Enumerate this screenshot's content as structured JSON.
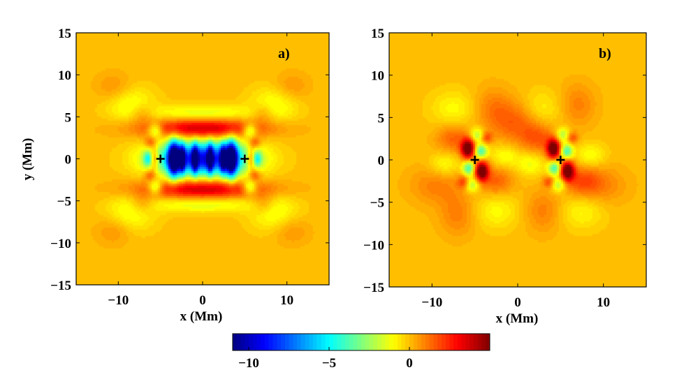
{
  "chart_data": [
    {
      "type": "heatmap",
      "panel_label": "a)",
      "xlabel": "x  (Mm)",
      "ylabel": "y  (Mm)",
      "xlim": [
        -15,
        15
      ],
      "ylim": [
        -15,
        15
      ],
      "xticks": [
        -10,
        0,
        10
      ],
      "yticks": [
        15,
        10,
        5,
        0,
        -5,
        -10,
        -15
      ],
      "grid": false,
      "markers": [
        {
          "x": -5,
          "y": 0,
          "symbol": "+"
        },
        {
          "x": 5,
          "y": 0,
          "symbol": "+"
        }
      ],
      "background_value": 0,
      "features": [
        {
          "x": -1.2,
          "y": 0,
          "sx": 3.6,
          "sy": 1.4,
          "value": -5
        },
        {
          "x": 1.2,
          "y": 0,
          "sx": 3.6,
          "sy": 1.4,
          "value": -5
        },
        {
          "x": -3.4,
          "y": 0,
          "sx": 0.5,
          "sy": 1.5,
          "value": -10
        },
        {
          "x": 3.4,
          "y": 0,
          "sx": 0.5,
          "sy": 1.5,
          "value": -10
        },
        {
          "x": -2.4,
          "y": 0,
          "sx": 0.25,
          "sy": 1.2,
          "value": -6
        },
        {
          "x": 2.4,
          "y": 0,
          "sx": 0.25,
          "sy": 1.2,
          "value": -6
        },
        {
          "x": -0.9,
          "y": 0,
          "sx": 0.25,
          "sy": 1.2,
          "value": -6
        },
        {
          "x": 0.9,
          "y": 0,
          "sx": 0.25,
          "sy": 1.2,
          "value": -6
        },
        {
          "x": 0,
          "y": 3.6,
          "sx": 5.0,
          "sy": 0.8,
          "value": 4
        },
        {
          "x": 0,
          "y": -3.6,
          "sx": 5.0,
          "sy": 0.8,
          "value": 4
        },
        {
          "x": 0,
          "y": 5.4,
          "sx": 4.5,
          "sy": 0.7,
          "value": -1.5
        },
        {
          "x": 0,
          "y": -5.4,
          "sx": 4.5,
          "sy": 0.7,
          "value": -1.5
        },
        {
          "x": -5.8,
          "y": 0,
          "sx": 0.4,
          "sy": 0.8,
          "value": 4
        },
        {
          "x": 5.8,
          "y": 0,
          "sx": 0.4,
          "sy": 0.8,
          "value": 4
        },
        {
          "x": -6.4,
          "y": 0,
          "sx": 0.4,
          "sy": 0.6,
          "value": -4
        },
        {
          "x": 6.4,
          "y": 0,
          "sx": 0.4,
          "sy": 0.6,
          "value": -4
        },
        {
          "x": -5.6,
          "y": 3.4,
          "sx": 0.6,
          "sy": 0.6,
          "value": -3
        },
        {
          "x": 5.6,
          "y": 3.4,
          "sx": 0.6,
          "sy": 0.6,
          "value": -3
        },
        {
          "x": -5.6,
          "y": -3.4,
          "sx": 0.6,
          "sy": 0.6,
          "value": -3
        },
        {
          "x": 5.6,
          "y": -3.4,
          "sx": 0.6,
          "sy": 0.6,
          "value": -3
        },
        {
          "x": -6.2,
          "y": 1.9,
          "sx": 0.5,
          "sy": 0.5,
          "value": 2
        },
        {
          "x": 6.2,
          "y": 1.9,
          "sx": 0.5,
          "sy": 0.5,
          "value": 2
        },
        {
          "x": -6.2,
          "y": -1.9,
          "sx": 0.5,
          "sy": 0.5,
          "value": 2
        },
        {
          "x": 6.2,
          "y": -1.9,
          "sx": 0.5,
          "sy": 0.5,
          "value": 2
        },
        {
          "x": -8.5,
          "y": 6.5,
          "sx": 2.0,
          "sy": 1.5,
          "value": -1.3
        },
        {
          "x": 8.5,
          "y": 6.5,
          "sx": 2.0,
          "sy": 1.5,
          "value": -1.3
        },
        {
          "x": -8.5,
          "y": -6.5,
          "sx": 2.0,
          "sy": 1.5,
          "value": -1.3
        },
        {
          "x": 8.5,
          "y": -6.5,
          "sx": 2.0,
          "sy": 1.5,
          "value": -1.3
        },
        {
          "x": -7.2,
          "y": 5.4,
          "sx": 1.0,
          "sy": 0.8,
          "value": 1.2
        },
        {
          "x": 7.2,
          "y": 5.4,
          "sx": 1.0,
          "sy": 0.8,
          "value": 1.2
        },
        {
          "x": -7.2,
          "y": -5.4,
          "sx": 1.0,
          "sy": 0.8,
          "value": 1.2
        },
        {
          "x": 7.2,
          "y": -5.4,
          "sx": 1.0,
          "sy": 0.8,
          "value": 1.2
        },
        {
          "x": -10.5,
          "y": 8.5,
          "sx": 1.5,
          "sy": 1.2,
          "value": 0.8
        },
        {
          "x": 10.5,
          "y": 8.5,
          "sx": 1.5,
          "sy": 1.2,
          "value": 0.8
        },
        {
          "x": -10.5,
          "y": -8.5,
          "sx": 1.5,
          "sy": 1.2,
          "value": 0.8
        },
        {
          "x": 10.5,
          "y": -8.5,
          "sx": 1.5,
          "sy": 1.2,
          "value": 0.8
        }
      ]
    },
    {
      "type": "heatmap",
      "panel_label": "b)",
      "xlabel": "x  (Mm)",
      "ylabel": "",
      "xlim": [
        -15,
        15
      ],
      "ylim": [
        -15,
        15
      ],
      "xticks": [
        -10,
        0,
        10
      ],
      "yticks": [
        15,
        10,
        5,
        0,
        -5,
        -10,
        -15
      ],
      "grid": false,
      "markers": [
        {
          "x": -5,
          "y": 0,
          "symbol": "+"
        },
        {
          "x": 5,
          "y": 0,
          "symbol": "+"
        }
      ],
      "background_value": 0,
      "features": [
        {
          "x": -5.8,
          "y": 1.3,
          "sx": 0.55,
          "sy": 0.8,
          "value": 6
        },
        {
          "x": -4.2,
          "y": -1.3,
          "sx": 0.55,
          "sy": 0.8,
          "value": 6
        },
        {
          "x": -4.3,
          "y": 1.0,
          "sx": 0.5,
          "sy": 0.6,
          "value": -4
        },
        {
          "x": -5.7,
          "y": -1.0,
          "sx": 0.5,
          "sy": 0.6,
          "value": -4
        },
        {
          "x": -4.7,
          "y": 2.9,
          "sx": 0.6,
          "sy": 0.6,
          "value": -2.5
        },
        {
          "x": -5.3,
          "y": -2.9,
          "sx": 0.6,
          "sy": 0.6,
          "value": -2.5
        },
        {
          "x": -3.7,
          "y": 2.6,
          "sx": 0.5,
          "sy": 0.5,
          "value": 2
        },
        {
          "x": -6.3,
          "y": -2.6,
          "sx": 0.5,
          "sy": 0.5,
          "value": 2
        },
        {
          "x": -7.5,
          "y": 2.5,
          "sx": 1.4,
          "sy": 1.2,
          "value": 1.5
        },
        {
          "x": -2.5,
          "y": -2.5,
          "sx": 1.4,
          "sy": 1.2,
          "value": 1.5
        },
        {
          "x": -8.5,
          "y": -0.5,
          "sx": 1.2,
          "sy": 1.0,
          "value": -1.2
        },
        {
          "x": -1.5,
          "y": 0.5,
          "sx": 1.2,
          "sy": 1.0,
          "value": -1.2
        },
        {
          "x": -9.5,
          "y": -3.0,
          "sx": 2.2,
          "sy": 1.6,
          "value": 1.0
        },
        {
          "x": -1.0,
          "y": 4.5,
          "sx": 1.5,
          "sy": 1.8,
          "value": 1.0
        },
        {
          "x": -7.0,
          "y": -6.5,
          "sx": 1.5,
          "sy": 1.8,
          "value": 1.0
        },
        {
          "x": -3.0,
          "y": 6.0,
          "sx": 1.5,
          "sy": 1.8,
          "value": 1.0
        },
        {
          "x": -7.5,
          "y": 6.0,
          "sx": 1.8,
          "sy": 1.5,
          "value": -1.0
        },
        {
          "x": -2.5,
          "y": -6.0,
          "sx": 1.8,
          "sy": 1.5,
          "value": -1.0
        },
        {
          "x": 4.2,
          "y": 1.3,
          "sx": 0.55,
          "sy": 0.8,
          "value": 6
        },
        {
          "x": 5.8,
          "y": -1.3,
          "sx": 0.55,
          "sy": 0.8,
          "value": 6
        },
        {
          "x": 5.7,
          "y": 1.0,
          "sx": 0.5,
          "sy": 0.6,
          "value": -4
        },
        {
          "x": 4.3,
          "y": -1.0,
          "sx": 0.5,
          "sy": 0.6,
          "value": -4
        },
        {
          "x": 5.3,
          "y": 2.9,
          "sx": 0.6,
          "sy": 0.6,
          "value": -2.5
        },
        {
          "x": 4.7,
          "y": -2.9,
          "sx": 0.6,
          "sy": 0.6,
          "value": -2.5
        },
        {
          "x": 6.3,
          "y": 2.6,
          "sx": 0.5,
          "sy": 0.5,
          "value": 2
        },
        {
          "x": 3.7,
          "y": -2.6,
          "sx": 0.5,
          "sy": 0.5,
          "value": 2
        },
        {
          "x": 2.5,
          "y": 2.5,
          "sx": 1.4,
          "sy": 1.2,
          "value": 1.5
        },
        {
          "x": 7.5,
          "y": -2.5,
          "sx": 1.4,
          "sy": 1.2,
          "value": 1.5
        },
        {
          "x": 1.5,
          "y": -0.5,
          "sx": 1.2,
          "sy": 1.0,
          "value": -1.2
        },
        {
          "x": 8.5,
          "y": 0.5,
          "sx": 1.2,
          "sy": 1.0,
          "value": -1.2
        },
        {
          "x": 9.5,
          "y": -3.0,
          "sx": 2.2,
          "sy": 1.6,
          "value": 1.0
        },
        {
          "x": 1.0,
          "y": 4.5,
          "sx": 1.5,
          "sy": 1.8,
          "value": 1.0
        },
        {
          "x": 7.0,
          "y": 6.5,
          "sx": 1.5,
          "sy": 1.8,
          "value": 1.0
        },
        {
          "x": 3.0,
          "y": -6.0,
          "sx": 1.5,
          "sy": 1.8,
          "value": 1.0
        },
        {
          "x": 7.5,
          "y": -6.0,
          "sx": 1.8,
          "sy": 1.5,
          "value": -1.0
        },
        {
          "x": 2.5,
          "y": 6.0,
          "sx": 1.8,
          "sy": 1.5,
          "value": -1.0
        }
      ]
    }
  ],
  "colorbar": {
    "colormap": "jet",
    "range": [
      -11,
      5
    ],
    "ticks": [
      -10,
      -5,
      0
    ],
    "stops": [
      "#00007f",
      "#0000ff",
      "#007fff",
      "#00ffff",
      "#7fff7f",
      "#ffff00",
      "#ff7f00",
      "#ff0000",
      "#7f0000"
    ]
  }
}
